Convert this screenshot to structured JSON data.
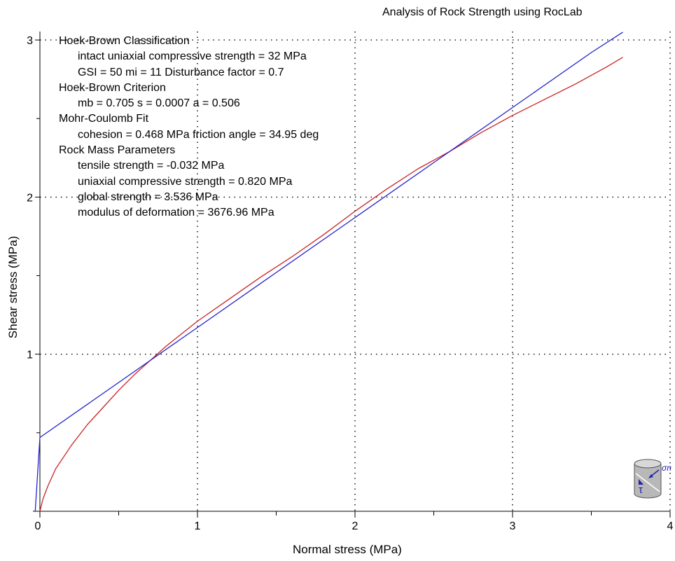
{
  "chart_data": {
    "type": "line",
    "title": "Analysis of Rock Strength using RocLab",
    "xlabel": "Normal stress (MPa)",
    "ylabel": "Shear stress (MPa)",
    "xlim": [
      0,
      4
    ],
    "ylim": [
      0,
      3
    ],
    "xticks": [
      "0",
      "1",
      "2",
      "3",
      "4"
    ],
    "yticks": [
      "1",
      "2",
      "3"
    ],
    "grid": true,
    "legend": "none",
    "series": [
      {
        "color": "#cc2222",
        "x": [
          0.0,
          0.02,
          0.05,
          0.1,
          0.2,
          0.3,
          0.4,
          0.5,
          0.6,
          0.7,
          0.8,
          0.9,
          1.0,
          1.2,
          1.4,
          1.6,
          1.8,
          2.0,
          2.2,
          2.4,
          2.6,
          2.8,
          3.0,
          3.2,
          3.4,
          3.6,
          3.7
        ],
        "y": [
          0.0,
          0.08,
          0.16,
          0.27,
          0.42,
          0.55,
          0.66,
          0.77,
          0.87,
          0.96,
          1.05,
          1.13,
          1.21,
          1.35,
          1.49,
          1.62,
          1.76,
          1.91,
          2.05,
          2.18,
          2.29,
          2.41,
          2.52,
          2.62,
          2.72,
          2.83,
          2.89
        ]
      },
      {
        "color": "#2222cc",
        "x": [
          -0.03,
          0.0,
          0.5,
          1.0,
          1.5,
          2.0,
          2.5,
          3.0,
          3.5,
          3.7
        ],
        "y": [
          0.0,
          0.47,
          0.82,
          1.17,
          1.52,
          1.87,
          2.22,
          2.57,
          2.92,
          3.05
        ]
      }
    ],
    "annotations": [
      {
        "text": "Hoek-Brown Classification",
        "level": 0
      },
      {
        "text": "intact uniaxial compressive strength = 32 MPa",
        "level": 1
      },
      {
        "text": "GSI = 50   mi = 11  Disturbance factor = 0.7",
        "level": 1
      },
      {
        "text": "Hoek-Brown Criterion",
        "level": 0
      },
      {
        "text": "mb = 0.705  s = 0.0007  a = 0.506",
        "level": 1
      },
      {
        "text": "Mohr-Coulomb Fit",
        "level": 0
      },
      {
        "text": "cohesion = 0.468 MPa  friction angle = 34.95 deg",
        "level": 1
      },
      {
        "text": "Rock Mass Parameters",
        "level": 0
      },
      {
        "text": "tensile strength = -0.032 MPa",
        "level": 1
      },
      {
        "text": "uniaxial compressive strength = 0.820 MPa",
        "level": 1
      },
      {
        "text": "global strength = 3.536 MPa",
        "level": 1
      },
      {
        "text": "modulus of deformation = 3676.96 MPa",
        "level": 1
      }
    ],
    "icon": {
      "name": "rock-sample-icon",
      "labels": [
        "σn",
        "τ"
      ]
    }
  }
}
